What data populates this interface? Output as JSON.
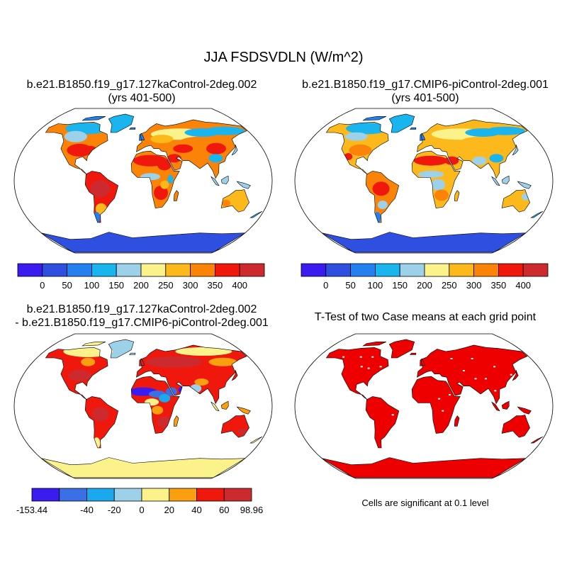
{
  "figure": {
    "title": "JJA FSDSVDLN (W/m^2)"
  },
  "panels": [
    {
      "id": "case1",
      "title_line1": "b.e21.B1850.f19_g17.127kaControl-2deg.002",
      "title_line2": "(yrs 401-500)",
      "fill": "abs"
    },
    {
      "id": "case2",
      "title_line1": "b.e21.B1850.f19_g17.CMIP6-piControl-2deg.001",
      "title_line2": "(yrs 401-500)",
      "fill": "abs2"
    },
    {
      "id": "difference",
      "title_line1": "b.e21.B1850.f19_g17.127kaControl-2deg.002",
      "title_line2": "- b.e21.B1850.f19_g17.CMIP6-piControl-2deg.001",
      "fill": "diff"
    },
    {
      "id": "ttest",
      "title_line1": "T-Test of two Case means at each grid point",
      "title_line2": "",
      "fill": "sig"
    }
  ],
  "colorbars": {
    "absolute": {
      "colors": [
        "#3a1cf0",
        "#2f4fe0",
        "#2381ef",
        "#1ab4ee",
        "#9dd1ea",
        "#fbf28c",
        "#fdb81c",
        "#fb8408",
        "#f0180c",
        "#cc2a2e"
      ],
      "labels": [
        "0",
        "50",
        "100",
        "150",
        "200",
        "250",
        "300",
        "350",
        "400"
      ]
    },
    "difference": {
      "colors": [
        "#3a1cf0",
        "#3a6fe6",
        "#1aa8ef",
        "#9dd1ea",
        "#fbf28c",
        "#fb9e10",
        "#f0180c",
        "#cc2a2e"
      ],
      "labels": [
        "-153.44",
        "-40",
        "-20",
        "0",
        "20",
        "40",
        "60",
        "98.96"
      ]
    }
  },
  "significance": {
    "note": "Cells are significant at 0.1 level",
    "color": "#ee0000"
  },
  "map": {
    "projection": "Robinson",
    "ocean_color": "#ffffff",
    "border_color": "#000000"
  }
}
